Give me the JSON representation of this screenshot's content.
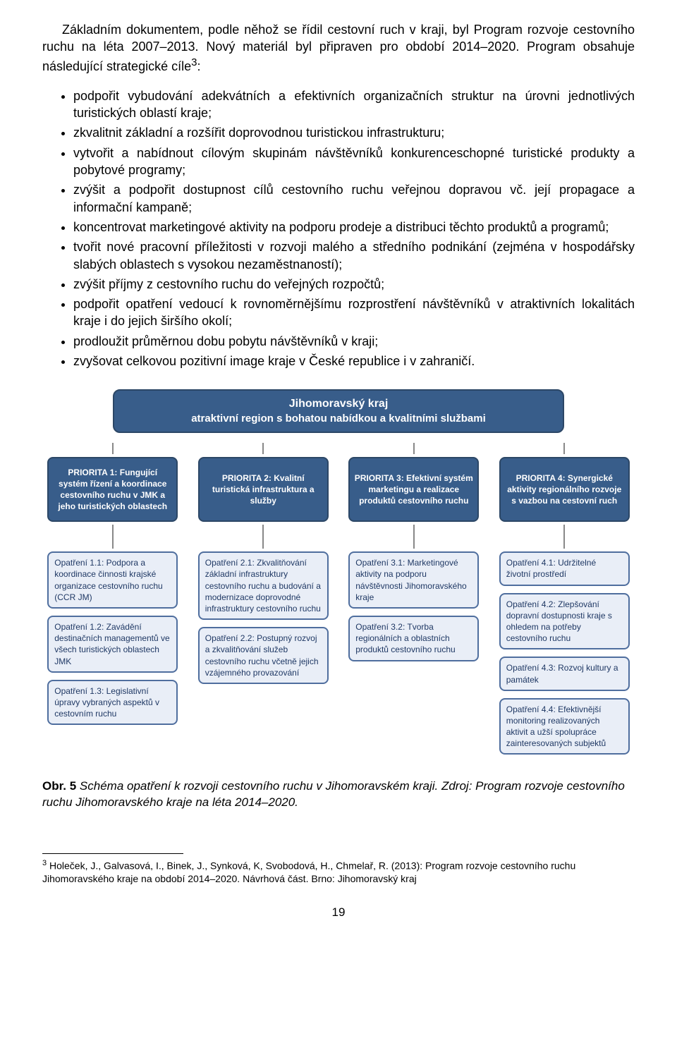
{
  "intro": {
    "p1": "Základním dokumentem, podle něhož se řídil cestovní ruch v kraji, byl Program rozvoje cestovního ruchu na léta 2007–2013. Nový materiál byl připraven pro období 2014–2020. Program obsahuje následující strategické cíle",
    "p1_sup": "3",
    "p1_tail": ":"
  },
  "bullets": [
    "podpořit vybudování adekvátních a efektivních organizačních struktur na úrovni jednotlivých turistických oblastí kraje;",
    "zkvalitnit základní a rozšířit doprovodnou turistickou infrastrukturu;",
    "vytvořit a nabídnout cílovým skupinám návštěvníků konkurenceschopné turistické produkty a pobytové programy;",
    "zvýšit a podpořit dostupnost cílů cestovního ruchu veřejnou dopravou vč. její propagace a informační kampaně;",
    "koncentrovat marketingové aktivity na podporu prodeje a distribuci těchto produktů a programů;",
    "tvořit nové pracovní příležitosti v rozvoji malého a středního podnikání (zejména v hospodářsky slabých oblastech s vysokou nezaměstnaností);",
    "zvýšit příjmy z cestovního ruchu do veřejných rozpočtů;",
    "podpořit opatření vedoucí k rovnoměrnějšímu rozprostření návštěvníků v atraktivních lokalitách kraje i do jejich širšího okolí;",
    "prodloužit průměrnou dobu pobytu návštěvníků v kraji;",
    "zvyšovat celkovou pozitivní image kraje v České republice i v zahraničí."
  ],
  "diagram": {
    "style": {
      "primary_fill": "#385d8a",
      "primary_border": "#2c4766",
      "primary_text": "#ffffff",
      "measure_fill": "#e9eef7",
      "measure_border": "#4f6e9e",
      "measure_text": "#1f3864",
      "connector": "#888888",
      "fontsize_header": 16,
      "fontsize_priority": 12,
      "fontsize_measure": 12,
      "border_radius": 8
    },
    "header": {
      "line1": "Jihomoravský kraj",
      "line2": "atraktivní region s bohatou nabídkou a kvalitními službami"
    },
    "columns": [
      {
        "priority": "PRIORITA 1: Fungující systém řízení a koordinace cestovního ruchu v JMK a jeho turistických oblastech",
        "measures": [
          "Opatření 1.1: Podpora a koordinace činnosti krajské organizace cestovního ruchu (CCR JM)",
          "Opatření 1.2: Zavádění destinačních managementů ve všech turistických oblastech JMK",
          "Opatření 1.3: Legislativní úpravy vybraných aspektů v cestovním ruchu"
        ]
      },
      {
        "priority": "PRIORITA 2: Kvalitní turistická infrastruktura a služby",
        "measures": [
          "Opatření 2.1: Zkvalitňování základní infrastruktury cestovního ruchu a budování a modernizace doprovodné infrastruktury cestovního ruchu",
          "Opatření 2.2: Postupný rozvoj a zkvalitňování služeb cestovního ruchu včetně jejich vzájemného provazování"
        ]
      },
      {
        "priority": "PRIORITA 3: Efektivní systém marketingu a realizace produktů cestovního ruchu",
        "measures": [
          "Opatření 3.1: Marketingové aktivity na podporu návštěvnosti Jihomoravského kraje",
          "Opatření 3.2: Tvorba regionálních a oblastních produktů cestovního ruchu"
        ]
      },
      {
        "priority": "PRIORITA 4: Synergické aktivity regionálního rozvoje s vazbou na cestovní ruch",
        "measures": [
          "Opatření 4.1: Udržitelné životní prostředí",
          "Opatření 4.2: Zlepšování dopravní dostupnosti kraje s ohledem na potřeby cestovního ruchu",
          "Opatření 4.3: Rozvoj kultury a památek",
          "Opatření 4.4: Efektivnější monitoring realizovaných aktivit a užší spolupráce zainteresovaných subjektů"
        ]
      }
    ]
  },
  "caption": {
    "label": "Obr. 5",
    "text": " Schéma opatření k rozvoji cestovního ruchu v Jihomoravském kraji. Zdroj: Program rozvoje cestovního ruchu Jihomoravského kraje na léta 2014–2020."
  },
  "footnote": {
    "num": "3",
    "text": " Holeček, J., Galvasová, I., Binek, J., Synková, K, Svobodová, H., Chmelař, R. (2013): Program rozvoje cestovního ruchu Jihomoravského kraje na období 2014–2020. Návrhová část. Brno: Jihomoravský kraj"
  },
  "page_number": "19"
}
